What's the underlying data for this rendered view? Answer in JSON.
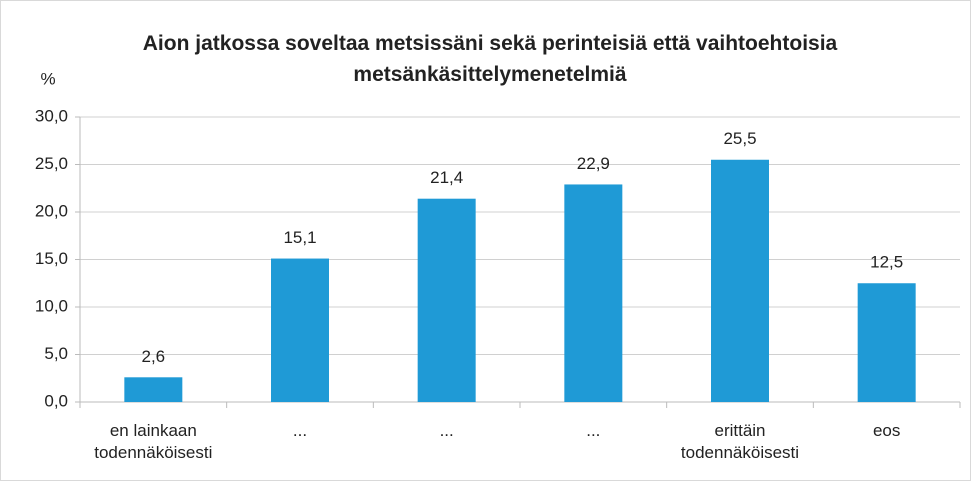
{
  "chart_data": {
    "type": "bar",
    "title": "Aion jatkossa soveltaa metsissäni sekä perinteisiä että vaihtoehtoisia metsänkäsittelymenetelmiä",
    "y_label": "%",
    "categories": [
      "en lainkaan todennäköisesti",
      "...",
      "...",
      "...",
      "erittäin todennäköisesti",
      "eos"
    ],
    "values": [
      2.6,
      15.1,
      21.4,
      22.9,
      25.5,
      12.5
    ],
    "value_labels": [
      "2,6",
      "15,1",
      "21,4",
      "22,9",
      "25,5",
      "12,5"
    ],
    "color": "#1f9ad6",
    "ylim": [
      0,
      30
    ],
    "yticks": [
      {
        "value": 0,
        "label": "0,0"
      },
      {
        "value": 5,
        "label": "5,0"
      },
      {
        "value": 10,
        "label": "10,0"
      },
      {
        "value": 15,
        "label": "15,0"
      },
      {
        "value": 20,
        "label": "20,0"
      },
      {
        "value": 25,
        "label": "25,0"
      },
      {
        "value": 30,
        "label": "30,0"
      }
    ],
    "grid": true
  }
}
